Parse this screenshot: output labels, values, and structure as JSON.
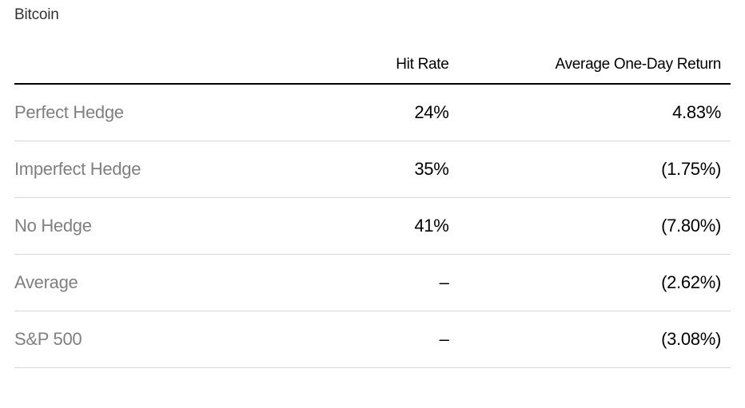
{
  "title": "Bitcoin",
  "table": {
    "columns": [
      "",
      "Hit Rate",
      "Average One-Day Return"
    ],
    "rows": [
      {
        "label": "Perfect Hedge",
        "hit": "24%",
        "ret": "4.83%"
      },
      {
        "label": "Imperfect Hedge",
        "hit": "35%",
        "ret": "(1.75%)"
      },
      {
        "label": "No Hedge",
        "hit": "41%",
        "ret": "(7.80%)"
      },
      {
        "label": "Average",
        "hit": "–",
        "ret": "(2.62%)"
      },
      {
        "label": "S&P 500",
        "hit": "–",
        "ret": "(3.08%)"
      }
    ]
  },
  "style": {
    "background_color": "#ffffff",
    "title_color": "#333333",
    "title_fontsize": 19,
    "header_color": "#000000",
    "header_fontsize": 19,
    "header_border_color": "#000000",
    "header_border_width": 2,
    "row_label_color": "#808080",
    "row_value_color": "#000000",
    "row_fontsize": 22,
    "row_border_color": "#d8d8d8",
    "row_border_width": 1,
    "font_weight_light": 300,
    "font_weight_regular": 400,
    "col_widths_pct": [
      38,
      24,
      38
    ],
    "row_padding_v": 22
  }
}
